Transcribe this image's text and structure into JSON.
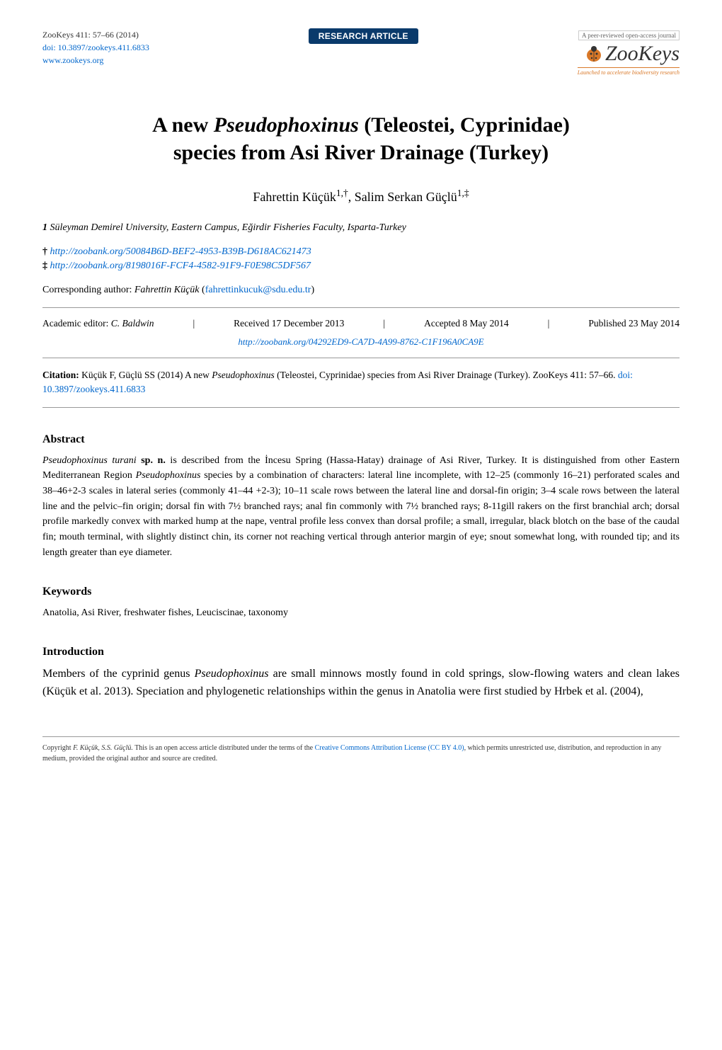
{
  "header": {
    "journal_issue": "ZooKeys 411: 57–66 (2014)",
    "doi": "doi: 10.3897/zookeys.411.6833",
    "website": "www.zookeys.org",
    "website_url": "www.zookeys.org",
    "badge_label": "RESEARCH ARTICLE",
    "logo_tagline_top": "A peer-reviewed open-access journal",
    "logo_text": "ZooKeys",
    "logo_tagline_bottom": "Launched to accelerate biodiversity research"
  },
  "title": {
    "line1_pre": "A new ",
    "line1_ital": "Pseudophoxinus",
    "line1_post": " (Teleostei, Cyprinidae)",
    "line2": "species from Asi River Drainage (Turkey)"
  },
  "authors": {
    "author1_name": "Fahrettin Küçük",
    "author1_sup": "1,†",
    "author2_name": "Salim Serkan Güçlü",
    "author2_sup": "1,‡"
  },
  "affiliation": {
    "marker": "1",
    "text": " Süleyman Demirel University, Eastern Campus, Eğirdir Fisheries Faculty, Isparta-Turkey"
  },
  "zoobank": {
    "dagger_marker": "†",
    "dagger_url_text": "http://zoobank.org/50084B6D-BEF2-4953-B39B-D618AC621473",
    "ddagger_marker": "‡",
    "ddagger_url_text": "http://zoobank.org/8198016F-FCF4-4582-91F9-F0E98C5DF567"
  },
  "corresponding": {
    "label": "Corresponding author: ",
    "name": "Fahrettin Küçük",
    "email": "fahrettinkucuk@sdu.edu.tr"
  },
  "editor": {
    "label": "Academic editor: ",
    "name": "C. Baldwin",
    "received": "Received 17 December 2013",
    "accepted": "Accepted 8 May 2014",
    "published": "Published 23 May 2014"
  },
  "zoobank_center": {
    "url_text": "http://zoobank.org/04292ED9-CA7D-4A99-8762-C1F196A0CA9E"
  },
  "citation": {
    "label": "Citation: ",
    "pre": "Küçük F, Güçlü SS (2014) A new ",
    "ital": "Pseudophoxinus",
    "post": " (Teleostei, Cyprinidae) species from Asi River Drainage (Turkey). ZooKeys 411: 57–66. ",
    "doi_text": "doi: 10.3897/zookeys.411.6833"
  },
  "abstract": {
    "heading": "Abstract",
    "html": "<em>Pseudophoxinus turani</em> <b>sp. n.</b> is described from the İncesu Spring (Hassa-Hatay) drainage of Asi River, Turkey. It is distinguished from other Eastern Mediterranean Region <em>Pseudophoxinus</em> species by a combination of characters: lateral line incomplete, with 12–25 (commonly 16–21) perforated scales and 38–46+2-3 scales in lateral series (commonly 41–44 +2-3); 10–11 scale rows between the lateral line and dorsal-fin origin; 3–4 scale rows between the lateral line and the pelvic–fin origin; dorsal fin with 7½ branched rays; anal fin commonly with 7½ branched rays; 8-11gill rakers on the first branchial arch; dorsal profile markedly convex with marked hump at the nape, ventral profile less convex than dorsal profile; a small, irregular, black blotch on the base of the caudal fin; mouth terminal, with slightly distinct chin, its corner not reaching vertical through anterior margin of eye; snout somewhat long, with rounded tip; and its length greater than eye diameter."
  },
  "keywords": {
    "heading": "Keywords",
    "text": "Anatolia, Asi River, freshwater fishes, Leuciscinae, taxonomy"
  },
  "introduction": {
    "heading": "Introduction",
    "html": "Members of the cyprinid genus <em>Pseudophoxinus</em> are small minnows mostly found in cold springs, slow-flowing waters and clean lakes (Küçük et al. 2013). Speciation and phylogenetic relationships within the genus in Anatolia were first studied by Hrbek et al. (2004),"
  },
  "footer": {
    "pre": "Copyright ",
    "authors": "F. Küçük, S.S. Güçlü.",
    "mid": " This is an open access article distributed under the terms of the ",
    "license_text": "Creative Commons Attribution License (CC BY 4.0)",
    "post": ", which permits unrestricted use, distribution, and reproduction in any medium, provided the original author and source are credited."
  },
  "colors": {
    "badge_bg": "#0a3a6b",
    "badge_fg": "#ffffff",
    "link": "#0066cc",
    "orange": "#d97828",
    "text": "#000000",
    "rule": "#999999",
    "bg": "#ffffff",
    "bug_fill": "#d97828"
  }
}
